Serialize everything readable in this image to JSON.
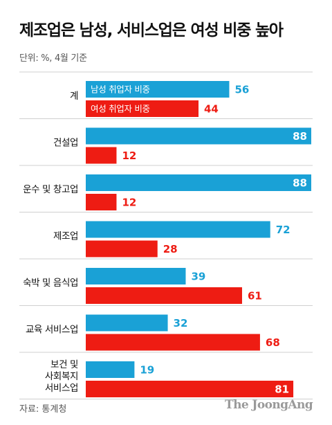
{
  "title": "제조업은 남성, 서비스업은 여성 비중 높아",
  "unit": "단위: %, 4월 기준",
  "source": "자료: 통계청",
  "logo": "The JoongAng",
  "colors": {
    "male": "#1aa1d6",
    "female": "#ee1c13",
    "divider": "#cfcfcf"
  },
  "chart_data": {
    "type": "bar",
    "orientation": "horizontal",
    "xlim": [
      0,
      88
    ],
    "categories": [
      "계",
      "건설업",
      "운수 및 창고업",
      "제조업",
      "숙박 및 음식업",
      "교육 서비스업",
      "보건 및\n사회복지\n서비스업"
    ],
    "series": [
      {
        "name": "남성 취업자 비중",
        "values": [
          56,
          88,
          88,
          72,
          39,
          32,
          19
        ]
      },
      {
        "name": "여성 취업자 비중",
        "values": [
          44,
          12,
          12,
          28,
          61,
          68,
          81
        ]
      }
    ]
  }
}
